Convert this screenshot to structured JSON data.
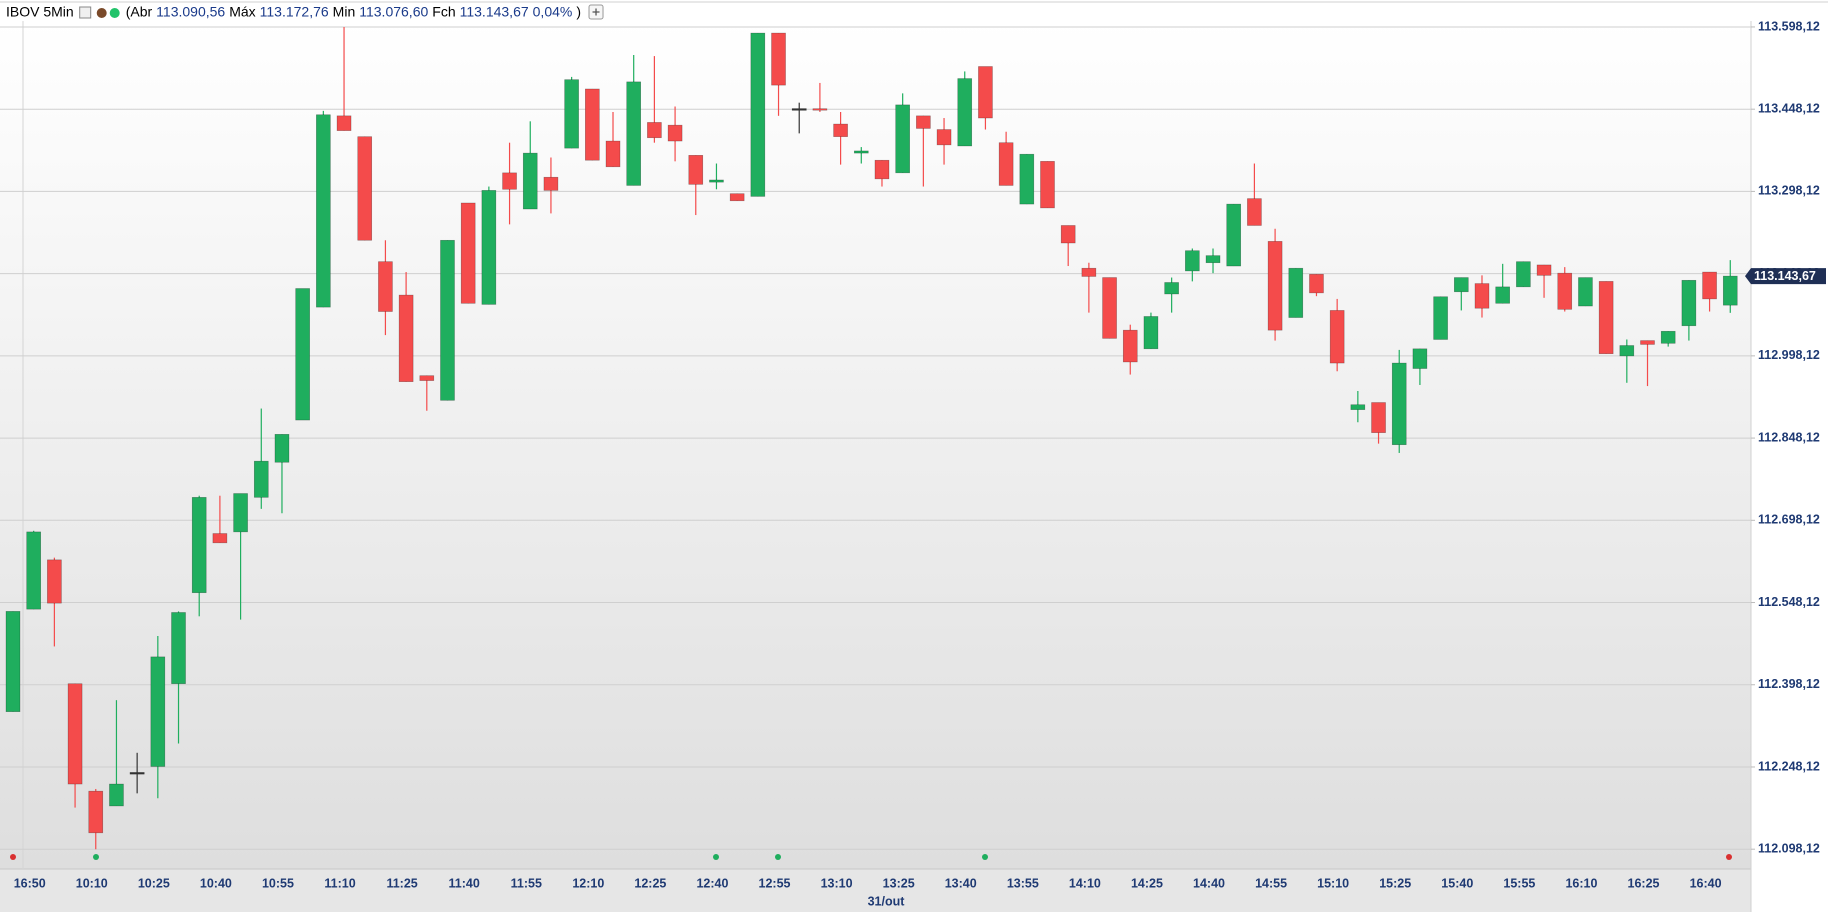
{
  "header": {
    "symbol": "IBOV 5Min",
    "open_prefix": "(Abr",
    "open": "113.090,56",
    "high_prefix": "Máx",
    "high": "113.172,76",
    "low_prefix": "Min",
    "low": "113.076,60",
    "close_prefix": "Fch",
    "close": "113.143,67",
    "change": "0,04%",
    "suffix": ")"
  },
  "chart_data": {
    "type": "candlestick",
    "date_label": "31/out",
    "up_color": "#1fae5e",
    "down_color": "#f44b4b",
    "doji_color": "#333333",
    "ylim": [
      112062,
      113609
    ],
    "yticks": [
      {
        "value": 112098.12,
        "label": "112.098,12"
      },
      {
        "value": 112248.12,
        "label": "112.248,12"
      },
      {
        "value": 112398.12,
        "label": "112.398,12"
      },
      {
        "value": 112548.12,
        "label": "112.548,12"
      },
      {
        "value": 112698.12,
        "label": "112.698,12"
      },
      {
        "value": 112848.12,
        "label": "112.848,12"
      },
      {
        "value": 112998.12,
        "label": "112.998,12"
      },
      {
        "value": 113148.12,
        "label": "113.148,12"
      },
      {
        "value": 113298.12,
        "label": "113.298,12"
      },
      {
        "value": 113448.12,
        "label": "113.448,12"
      },
      {
        "value": 113598.12,
        "label": "113.598,12"
      }
    ],
    "grid": true,
    "categories": [
      null,
      "16:50",
      null,
      null,
      "10:10",
      null,
      null,
      "10:25",
      null,
      null,
      "10:40",
      null,
      null,
      "10:55",
      null,
      null,
      "11:10",
      null,
      null,
      "11:25",
      null,
      null,
      "11:40",
      null,
      null,
      "11:55",
      null,
      null,
      "12:10",
      null,
      null,
      "12:25",
      null,
      null,
      "12:40",
      null,
      null,
      "12:55",
      null,
      null,
      "13:10",
      null,
      null,
      "13:25",
      null,
      null,
      "13:40",
      null,
      null,
      "13:55",
      null,
      null,
      "14:10",
      null,
      null,
      "14:25",
      null,
      null,
      "14:40",
      null,
      null,
      "14:55",
      null,
      null,
      "15:10",
      null,
      null,
      "15:25",
      null,
      null,
      "15:40",
      null,
      null,
      "15:55",
      null,
      null,
      "16:10",
      null,
      null,
      "16:25",
      null,
      null,
      "16:40",
      null
    ],
    "open": [
      112349,
      112536,
      112626,
      112400,
      112204,
      112177,
      112238,
      112249,
      112400,
      112566,
      112674,
      112677,
      112740,
      112804,
      112881,
      113087,
      113436,
      113398,
      113170,
      113109,
      112962,
      112917,
      113277,
      113092,
      113332,
      113266,
      113324,
      113377,
      113485,
      113390,
      113309,
      113424,
      113419,
      113364,
      113315,
      113294,
      113289,
      113587,
      113449,
      113449,
      113421,
      113368,
      113355,
      113332,
      113436,
      113411,
      113381,
      113526,
      113387,
      113275,
      113353,
      113236,
      113158,
      113141,
      113045,
      113011,
      113111,
      113153,
      113168,
      113162,
      113285,
      113207,
      113068,
      113147,
      113081,
      112900,
      112913,
      112836,
      112975,
      113028,
      113115,
      113130,
      113094,
      113124,
      113164,
      113149,
      113089,
      113134,
      112998,
      113026,
      113021,
      113053,
      113151,
      113090.56
    ],
    "high": [
      112532,
      112679,
      112630,
      112400,
      112208,
      112370,
      112274,
      112487,
      112532,
      112743,
      112743,
      112747,
      112902,
      112855,
      113121,
      113445,
      113598,
      113398,
      113209,
      113151,
      112962,
      113209,
      113277,
      113307,
      113387,
      113426,
      113360,
      113507,
      113485,
      113443,
      113547,
      113545,
      113453,
      113364,
      113349,
      113294,
      113587,
      113587,
      113460,
      113496,
      113443,
      113379,
      113355,
      113477,
      113436,
      113432,
      113517,
      113526,
      113407,
      113366,
      113353,
      113236,
      113168,
      113141,
      113055,
      113077,
      113141,
      113194,
      113194,
      113275,
      113349,
      113230,
      113158,
      113147,
      113102,
      112934,
      112913,
      113009,
      113011,
      113106,
      113141,
      113145,
      113166,
      113170,
      113164,
      113160,
      113141,
      113134,
      113028,
      113026,
      113043,
      113136,
      113151,
      113172.76
    ],
    "low": [
      112349,
      112536,
      112468,
      112174,
      112098,
      112177,
      112200,
      112191,
      112291,
      112523,
      112657,
      112517,
      112719,
      112711,
      112881,
      113087,
      113409,
      113209,
      113036,
      112951,
      112898,
      112917,
      113094,
      113092,
      113238,
      113266,
      113258,
      113377,
      113355,
      113343,
      113309,
      113387,
      113353,
      113255,
      113302,
      113281,
      113289,
      113436,
      113404,
      113443,
      113347,
      113349,
      113307,
      113332,
      113307,
      113347,
      113381,
      113411,
      113309,
      113275,
      113268,
      113162,
      113077,
      113030,
      112964,
      113011,
      113077,
      113134,
      113149,
      113162,
      113236,
      113026,
      113068,
      113107,
      112970,
      112877,
      112838,
      112821,
      112945,
      113028,
      113081,
      113068,
      113094,
      113124,
      113104,
      113079,
      113089,
      113002,
      112949,
      112943,
      113015,
      113026,
      113079,
      113076.6
    ],
    "close": [
      112532,
      112677,
      112547,
      112217,
      112128,
      112217,
      112238,
      112449,
      112530,
      112740,
      112657,
      112747,
      112806,
      112855,
      113121,
      113438,
      113409,
      113209,
      113079,
      112951,
      112953,
      113209,
      113094,
      113300,
      113302,
      113368,
      113300,
      113502,
      113355,
      113343,
      113498,
      113396,
      113390,
      113311,
      113319,
      113281,
      113587,
      113492,
      113449,
      113447,
      113398,
      113372,
      113321,
      113456,
      113413,
      113383,
      113504,
      113432,
      113309,
      113366,
      113268,
      113204,
      113143,
      113030,
      112987,
      113070,
      113132,
      113190,
      113181,
      113275,
      113236,
      113045,
      113158,
      113113,
      112985,
      112909,
      112858,
      112985,
      113011,
      113106,
      113141,
      113085,
      113124,
      113170,
      113145,
      113083,
      113141,
      113002,
      113017,
      113019,
      113043,
      113136,
      113102,
      113143.67
    ]
  }
}
